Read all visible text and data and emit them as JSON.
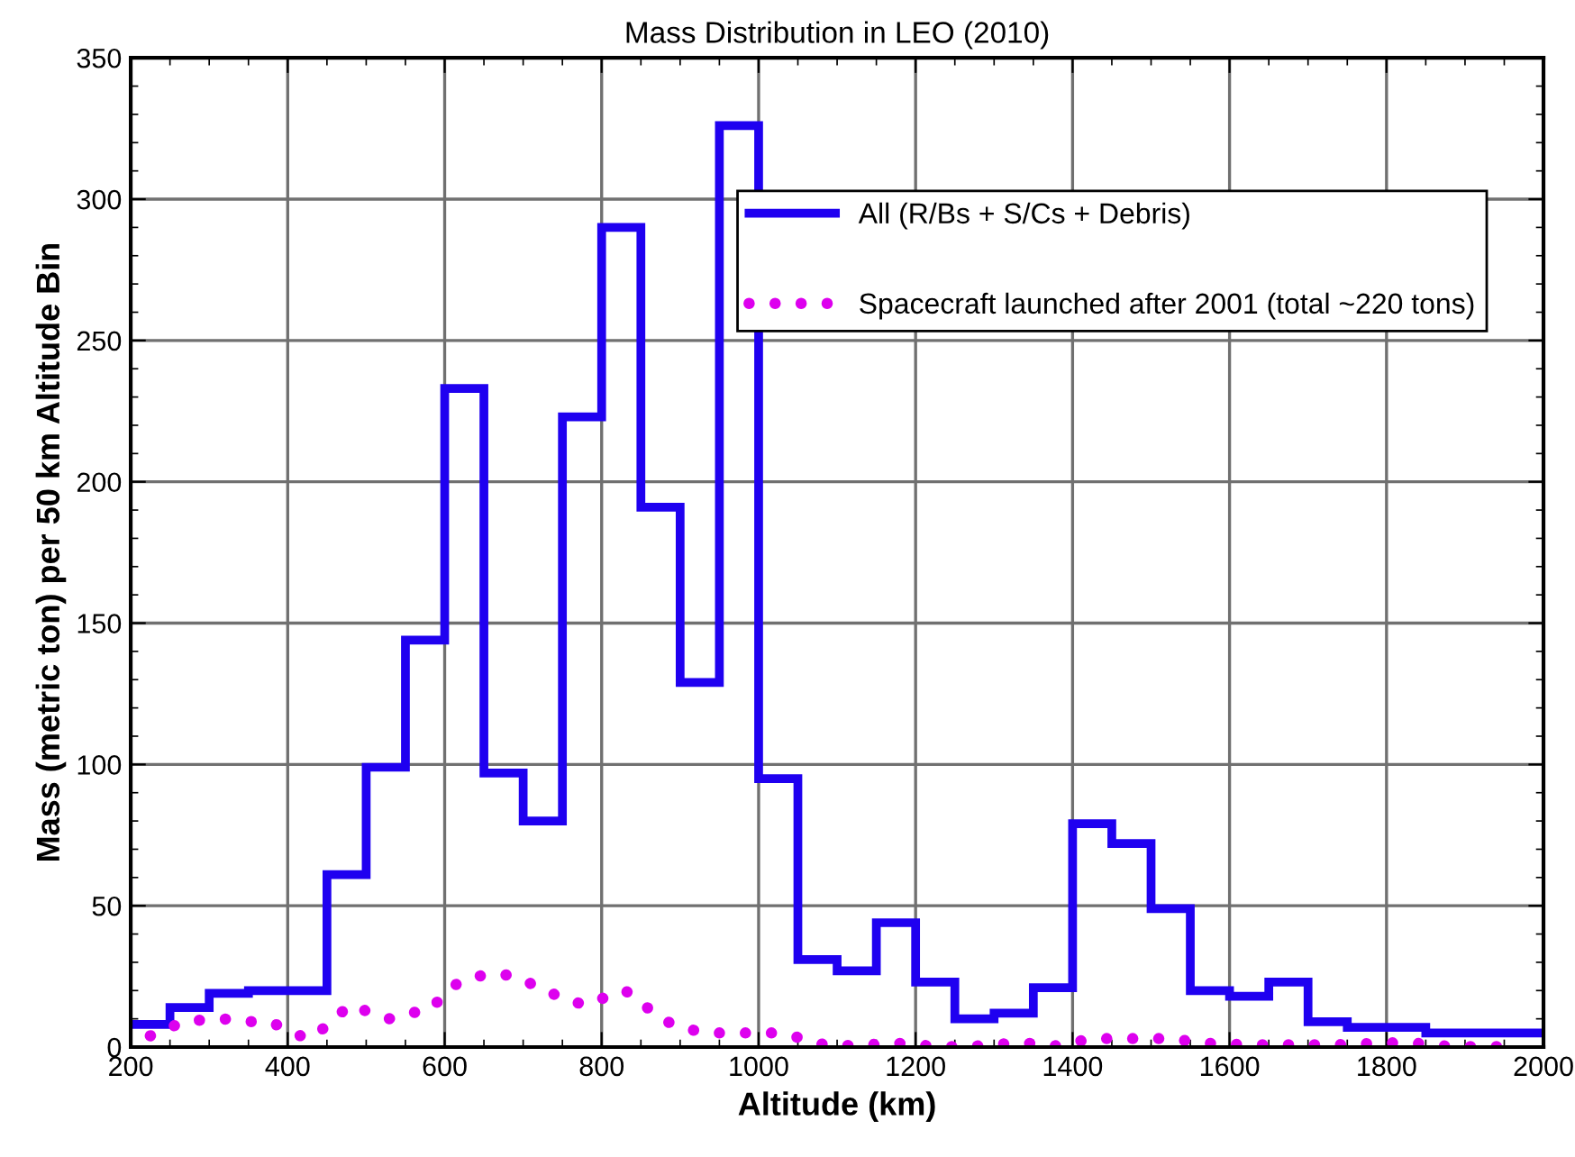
{
  "chart_data": {
    "type": "histogram",
    "title": "Mass Distribution in LEO (2010)",
    "xlabel": "Altitude (km)",
    "ylabel": "Mass (metric ton) per 50 km Altitude Bin",
    "bins": [
      200,
      250,
      300,
      350,
      400,
      450,
      500,
      550,
      600,
      650,
      700,
      750,
      800,
      850,
      900,
      950,
      1000,
      1050,
      1100,
      1150,
      1200,
      1250,
      1300,
      1350,
      1400,
      1450,
      1500,
      1550,
      1600,
      1650,
      1700,
      1750,
      1800,
      1850,
      1900,
      1950,
      2000
    ],
    "series": [
      {
        "name": "All (R/Bs + S/Cs + Debris)",
        "color": "#1f00f0",
        "values": [
          8,
          14,
          19,
          20,
          20,
          61,
          99,
          144,
          233,
          97,
          80,
          223,
          290,
          191,
          129,
          326,
          95,
          31,
          27,
          44,
          23,
          10,
          12,
          21,
          79,
          72,
          49,
          20,
          18,
          23,
          9,
          7,
          7,
          5,
          5,
          5
        ]
      },
      {
        "name": "Spacecraft launched after 2001 (total ~220 tons)",
        "type": "line",
        "color": "#dd00ee",
        "line_style": "dotted",
        "marker": "none",
        "x": [
          225,
          250,
          274,
          300,
          325,
          352,
          377,
          401,
          424,
          443,
          462,
          482,
          506,
          530,
          555,
          580,
          598,
          618,
          641,
          666,
          691,
          713,
          737,
          761,
          784,
          807,
          830,
          850,
          870,
          891,
          916,
          941,
          966,
          993,
          1019,
          1044,
          1064,
          1089,
          1115,
          1140,
          1166,
          1191,
          1217,
          1242,
          1269,
          1295,
          1320,
          1346,
          1372,
          1397,
          1423,
          1448,
          1473,
          1499,
          1525,
          1551,
          1576,
          1602,
          1628,
          1653,
          1679,
          1704,
          1730,
          1756,
          1781,
          1807,
          1832,
          1858,
          1883,
          1909,
          1935,
          1960
        ],
        "values": [
          4,
          7,
          9.5,
          9.5,
          10,
          9,
          9,
          6,
          3,
          6,
          11,
          15,
          12,
          10,
          12,
          13,
          18,
          23,
          25,
          26,
          25,
          22,
          19,
          16,
          15,
          18,
          20,
          16,
          11,
          8,
          6,
          5,
          5,
          5,
          5,
          4,
          2,
          0.6,
          0.6,
          0.8,
          1.3,
          1.3,
          0.4,
          0.2,
          0.2,
          0.8,
          1.3,
          1.3,
          0.2,
          1.3,
          3,
          3,
          3,
          3,
          3,
          2,
          1.3,
          1,
          0.8,
          0.8,
          0.8,
          0.8,
          0.8,
          1,
          1.3,
          1.5,
          1.5,
          0.8,
          0.2,
          0.2,
          0.2,
          0.2
        ]
      }
    ],
    "xlim": [
      200,
      2000
    ],
    "xticks": [
      200,
      400,
      600,
      800,
      1000,
      1200,
      1400,
      1600,
      1800,
      2000
    ],
    "ylim": [
      0,
      350
    ],
    "yticks": [
      0,
      50,
      100,
      150,
      200,
      250,
      300,
      350
    ],
    "grid": true,
    "legend": "top right"
  }
}
